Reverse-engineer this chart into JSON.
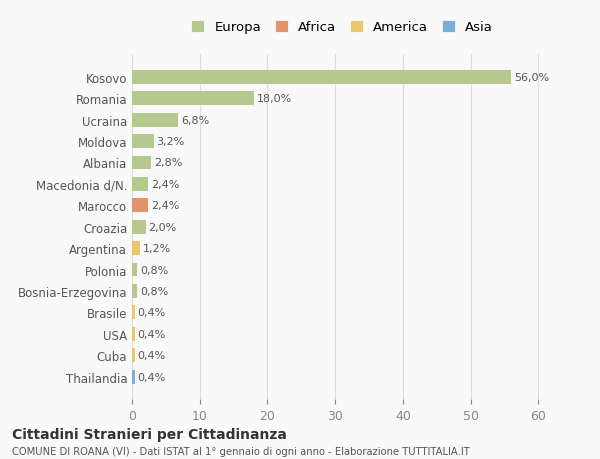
{
  "countries": [
    "Kosovo",
    "Romania",
    "Ucraina",
    "Moldova",
    "Albania",
    "Macedonia d/N.",
    "Marocco",
    "Croazia",
    "Argentina",
    "Polonia",
    "Bosnia-Erzegovina",
    "Brasile",
    "USA",
    "Cuba",
    "Thailandia"
  ],
  "values": [
    56.0,
    18.0,
    6.8,
    3.2,
    2.8,
    2.4,
    2.4,
    2.0,
    1.2,
    0.8,
    0.8,
    0.4,
    0.4,
    0.4,
    0.4
  ],
  "labels": [
    "56,0%",
    "18,0%",
    "6,8%",
    "3,2%",
    "2,8%",
    "2,4%",
    "2,4%",
    "2,0%",
    "1,2%",
    "0,8%",
    "0,8%",
    "0,4%",
    "0,4%",
    "0,4%",
    "0,4%"
  ],
  "colors": [
    "#b5c98e",
    "#b5c98e",
    "#b5c98e",
    "#b5c98e",
    "#b5c98e",
    "#b5c98e",
    "#e0956a",
    "#b5c98e",
    "#e8c96a",
    "#b5c98e",
    "#b5c98e",
    "#e8c96a",
    "#e8c96a",
    "#e8c96a",
    "#7aaed6"
  ],
  "continent": [
    "Europa",
    "Europa",
    "Europa",
    "Europa",
    "Europa",
    "Europa",
    "Africa",
    "Europa",
    "America",
    "Europa",
    "Europa",
    "America",
    "America",
    "America",
    "Asia"
  ],
  "legend_labels": [
    "Europa",
    "Africa",
    "America",
    "Asia"
  ],
  "legend_colors": [
    "#b5c98e",
    "#e0956a",
    "#e8c96a",
    "#7aaed6"
  ],
  "xlim": [
    0,
    62
  ],
  "xticks": [
    0,
    10,
    20,
    30,
    40,
    50,
    60
  ],
  "title1": "Cittadini Stranieri per Cittadinanza",
  "title2": "COMUNE DI ROANA (VI) - Dati ISTAT al 1° gennaio di ogni anno - Elaborazione TUTTITALIA.IT",
  "bg_color": "#f9f9f9",
  "grid_color": "#dddddd"
}
